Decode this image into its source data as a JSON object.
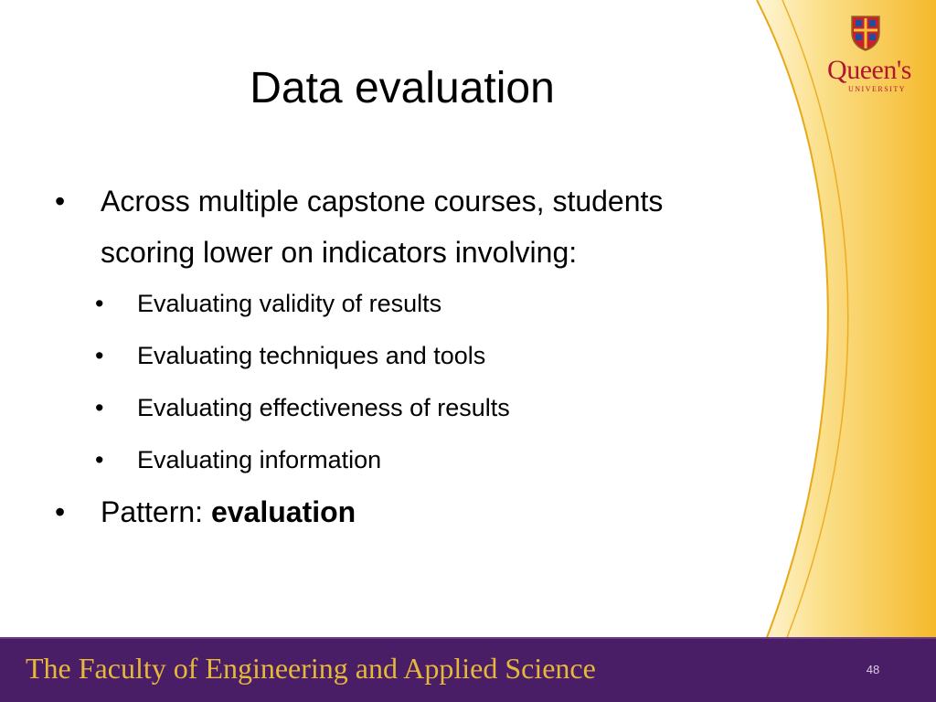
{
  "slide": {
    "title": "Data evaluation",
    "bullets": [
      {
        "text": "Across multiple capstone courses, students scoring lower on indicators involving:",
        "sub_bullets": [
          "Evaluating validity of results",
          "Evaluating techniques and tools",
          "Evaluating effectiveness of results",
          "Evaluating information"
        ]
      },
      {
        "prefix": "Pattern: ",
        "emphasis": "evaluation"
      }
    ]
  },
  "branding": {
    "logo_text": "Queen's",
    "logo_subtext": "UNIVERSITY",
    "crest_icon": "university-crest-icon"
  },
  "footer": {
    "text": "The Faculty of Engineering and Applied Science",
    "page_number": "48"
  },
  "colors": {
    "footer_background": "#4a1e67",
    "footer_text": "#e5b83a",
    "accent_gold": "#f2b632",
    "logo_red": "#b0172c"
  }
}
